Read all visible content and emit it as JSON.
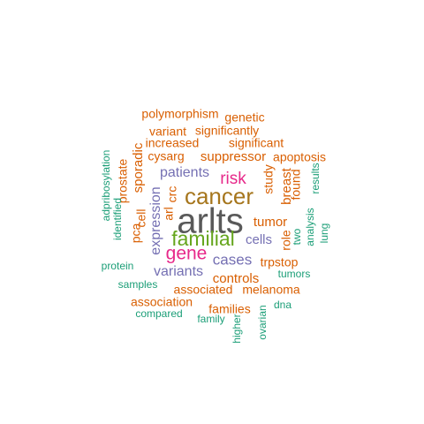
{
  "colors": {
    "background": "#ffffff",
    "dark_gray": "#595959",
    "brown": "#a6761d",
    "green": "#66a61e",
    "magenta": "#e7298a",
    "purple": "#7570b3",
    "orange": "#d95f02",
    "teal": "#1b9e77"
  },
  "words": [
    {
      "text": "arlts",
      "color": "#595959"
    },
    {
      "text": "cancer",
      "color": "#a6761d"
    },
    {
      "text": "familial",
      "color": "#66a61e"
    },
    {
      "text": "gene",
      "color": "#e7298a"
    },
    {
      "text": "risk",
      "color": "#e7298a"
    },
    {
      "text": "cases",
      "color": "#7570b3"
    },
    {
      "text": "patients",
      "color": "#7570b3"
    },
    {
      "text": "variants",
      "color": "#7570b3"
    },
    {
      "text": "expression",
      "color": "#7570b3"
    },
    {
      "text": "cells",
      "color": "#7570b3"
    },
    {
      "text": "tumor",
      "color": "#d95f02"
    },
    {
      "text": "controls",
      "color": "#d95f02"
    },
    {
      "text": "suppressor",
      "color": "#d95f02"
    },
    {
      "text": "breast",
      "color": "#d95f02"
    },
    {
      "text": "sporadic",
      "color": "#d95f02"
    },
    {
      "text": "cysarg",
      "color": "#d95f02"
    },
    {
      "text": "study",
      "color": "#d95f02"
    },
    {
      "text": "found",
      "color": "#d95f02"
    },
    {
      "text": "significantly",
      "color": "#d95f02"
    },
    {
      "text": "increased",
      "color": "#d95f02"
    },
    {
      "text": "significant",
      "color": "#d95f02"
    },
    {
      "text": "apoptosis",
      "color": "#d95f02"
    },
    {
      "text": "variant",
      "color": "#d95f02"
    },
    {
      "text": "genetic",
      "color": "#d95f02"
    },
    {
      "text": "polymorphism",
      "color": "#d95f02"
    },
    {
      "text": "prostate",
      "color": "#d95f02"
    },
    {
      "text": "cell",
      "color": "#d95f02"
    },
    {
      "text": "crc",
      "color": "#d95f02"
    },
    {
      "text": "arl",
      "color": "#d95f02"
    },
    {
      "text": "pca",
      "color": "#d95f02"
    },
    {
      "text": "role",
      "color": "#d95f02"
    },
    {
      "text": "trpstop",
      "color": "#d95f02"
    },
    {
      "text": "melanoma",
      "color": "#d95f02"
    },
    {
      "text": "associated",
      "color": "#d95f02"
    },
    {
      "text": "association",
      "color": "#d95f02"
    },
    {
      "text": "families",
      "color": "#d95f02"
    },
    {
      "text": "two",
      "color": "#1b9e77"
    },
    {
      "text": "analysis",
      "color": "#1b9e77"
    },
    {
      "text": "results",
      "color": "#1b9e77"
    },
    {
      "text": "lung",
      "color": "#1b9e77"
    },
    {
      "text": "tumors",
      "color": "#1b9e77"
    },
    {
      "text": "dna",
      "color": "#1b9e77"
    },
    {
      "text": "ovarian",
      "color": "#1b9e77"
    },
    {
      "text": "higher",
      "color": "#1b9e77"
    },
    {
      "text": "family",
      "color": "#1b9e77"
    },
    {
      "text": "compared",
      "color": "#1b9e77"
    },
    {
      "text": "samples",
      "color": "#1b9e77"
    },
    {
      "text": "protein",
      "color": "#1b9e77"
    },
    {
      "text": "identified",
      "color": "#1b9e77"
    },
    {
      "text": "adpribosylation",
      "color": "#1b9e77"
    }
  ]
}
